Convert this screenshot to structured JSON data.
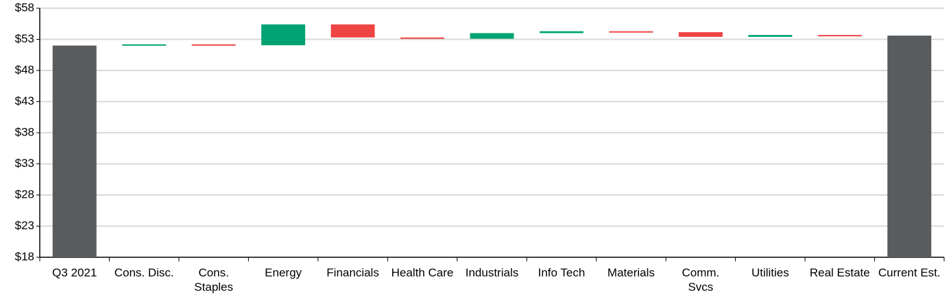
{
  "chart_data": {
    "type": "waterfall",
    "categories": [
      "Q3 2021",
      "Cons. Disc.",
      "Cons.\nStaples",
      "Energy",
      "Financials",
      "Health Care",
      "Industrials",
      "Info Tech",
      "Materials",
      "Comm.\nSvcs",
      "Utilities",
      "Real Estate",
      "Current Est."
    ],
    "values": [
      52.0,
      0.2,
      -0.15,
      3.35,
      -2.1,
      -0.2,
      0.9,
      0.3,
      -0.15,
      -0.75,
      0.3,
      -0.1,
      53.6
    ],
    "colors": {
      "total": "#595c5e",
      "increase": "#00a274",
      "decrease": "#ef4444"
    },
    "ylim": [
      18,
      58
    ],
    "yticks": [
      {
        "value": 18,
        "label": "$18"
      },
      {
        "value": 23,
        "label": "$23"
      },
      {
        "value": 28,
        "label": "$28"
      },
      {
        "value": 33,
        "label": "$33"
      },
      {
        "value": 38,
        "label": "$38"
      },
      {
        "value": 43,
        "label": "$43"
      },
      {
        "value": 48,
        "label": "$48"
      },
      {
        "value": 53,
        "label": "$53"
      },
      {
        "value": 58,
        "label": "$58"
      }
    ],
    "grid": true
  }
}
